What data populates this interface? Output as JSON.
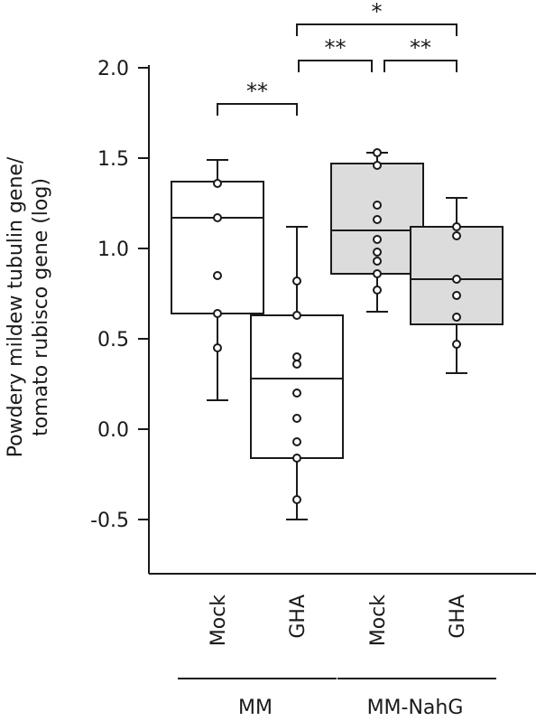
{
  "colors": {
    "ink": "#1a1a1a",
    "mm_fill": "#ffffff",
    "nahg_fill": "#dcdcdc",
    "point_fill": "#ffffff"
  },
  "chart_data": {
    "type": "box",
    "title": "",
    "ylabel_lines": [
      "Powdery mildew tubulin gene/",
      "tomato rubisco gene (log)"
    ],
    "ylim": [
      -0.8,
      2.0
    ],
    "yticks": [
      -0.5,
      0.0,
      0.5,
      1.0,
      1.5,
      2.0
    ],
    "ytick_labels": [
      "-0.5",
      "0.0",
      "0.5",
      "1.0",
      "1.5",
      "2.0"
    ],
    "groups": [
      {
        "label": "MM",
        "categories": [
          0,
          1
        ]
      },
      {
        "label": "MM-NahG",
        "categories": [
          2,
          3
        ]
      }
    ],
    "categories": [
      {
        "label": "Mock",
        "group": "MM",
        "fill": "mm",
        "whisker_low": 0.16,
        "q1": 0.64,
        "median": 1.17,
        "q3": 1.37,
        "whisker_high": 1.49,
        "points": [
          1.36,
          1.17,
          0.85,
          0.64,
          0.45
        ]
      },
      {
        "label": "GHA",
        "group": "MM",
        "fill": "mm",
        "whisker_low": -0.5,
        "q1": -0.16,
        "median": 0.28,
        "q3": 0.63,
        "whisker_high": 1.12,
        "points": [
          0.82,
          0.63,
          0.4,
          0.36,
          0.2,
          0.06,
          -0.07,
          -0.16,
          -0.39
        ]
      },
      {
        "label": "Mock",
        "group": "MM-NahG",
        "fill": "nahg",
        "whisker_low": 0.65,
        "q1": 0.86,
        "median": 1.1,
        "q3": 1.47,
        "whisker_high": 1.53,
        "points": [
          1.53,
          1.46,
          1.24,
          1.16,
          1.05,
          0.98,
          0.93,
          0.86,
          0.77
        ]
      },
      {
        "label": "GHA",
        "group": "MM-NahG",
        "fill": "nahg",
        "whisker_low": 0.31,
        "q1": 0.58,
        "median": 0.83,
        "q3": 1.12,
        "whisker_high": 1.28,
        "points": [
          1.12,
          1.07,
          0.83,
          0.74,
          0.62,
          0.47
        ]
      }
    ],
    "significance": [
      {
        "from": 0,
        "to": 1,
        "y": 1.8,
        "label": "**"
      },
      {
        "from": 1,
        "to": 2,
        "y": 2.04,
        "label": "**"
      },
      {
        "from": 2,
        "to": 3,
        "y": 2.04,
        "label": "**"
      },
      {
        "from": 1,
        "to": 3,
        "y": 2.24,
        "label": "*"
      }
    ]
  }
}
